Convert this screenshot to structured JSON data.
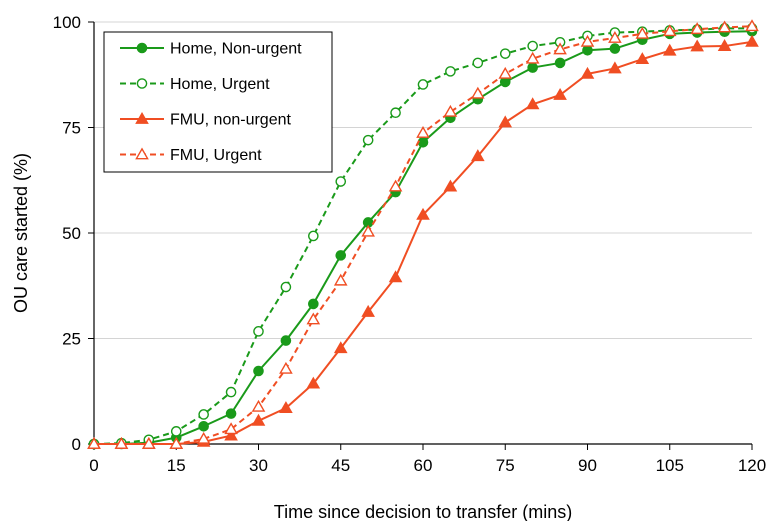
{
  "chart_data": {
    "type": "line",
    "title": "",
    "xlabel": "Time since decision to transfer (mins)",
    "ylabel": "OU care started (%)",
    "xlim": [
      0,
      120
    ],
    "ylim": [
      0,
      100
    ],
    "x_ticks": [
      0,
      15,
      30,
      45,
      60,
      75,
      90,
      105,
      120
    ],
    "y_ticks": [
      0,
      25,
      50,
      75,
      100
    ],
    "x_tick_labels": [
      "0",
      "15",
      "30",
      "45",
      "60",
      "75",
      "90",
      "105",
      "120"
    ],
    "y_tick_labels": [
      "0",
      "25",
      "50",
      "75",
      "100"
    ],
    "grid": "horizontal",
    "legend_position": "top-left",
    "x": [
      0,
      5,
      10,
      15,
      20,
      25,
      30,
      35,
      40,
      45,
      50,
      55,
      60,
      65,
      70,
      75,
      80,
      85,
      90,
      95,
      100,
      105,
      110,
      115,
      120
    ],
    "series": [
      {
        "name": "Home, Non-urgent",
        "color": "#1a9a1a",
        "line": "solid",
        "marker": "filled-circle",
        "values": [
          0,
          0,
          0.3,
          1.5,
          4.2,
          7.2,
          17.3,
          24.5,
          33.2,
          44.7,
          52.5,
          59.7,
          71.5,
          77.3,
          81.7,
          85.8,
          89.2,
          90.3,
          93.3,
          93.7,
          95.8,
          97.2,
          97.5,
          97.7,
          97.8
        ]
      },
      {
        "name": "Home, Urgent",
        "color": "#1a9a1a",
        "line": "dashed",
        "marker": "open-circle",
        "values": [
          0,
          0.2,
          1.0,
          3.0,
          7.0,
          12.3,
          26.7,
          37.2,
          49.3,
          62.2,
          72.0,
          78.5,
          85.2,
          88.3,
          90.3,
          92.5,
          94.3,
          95.2,
          96.7,
          97.5,
          97.7,
          98.0,
          98.2,
          98.5,
          98.5
        ]
      },
      {
        "name": "FMU, non-urgent",
        "color": "#f04e23",
        "line": "solid",
        "marker": "filled-triangle",
        "values": [
          0,
          0,
          0,
          0,
          0.5,
          2.0,
          5.5,
          8.5,
          14.3,
          22.7,
          31.3,
          39.5,
          54.3,
          61.0,
          68.2,
          76.2,
          80.5,
          82.7,
          87.7,
          89.0,
          91.2,
          93.2,
          94.2,
          94.3,
          95.3
        ]
      },
      {
        "name": "FMU, Urgent",
        "color": "#f04e23",
        "line": "dashed",
        "marker": "open-triangle",
        "values": [
          0,
          0,
          0,
          0,
          1.2,
          3.5,
          8.8,
          17.8,
          29.5,
          38.7,
          50.3,
          61.0,
          73.7,
          78.7,
          83.0,
          87.7,
          91.3,
          93.5,
          95.3,
          96.2,
          97.2,
          97.8,
          98.3,
          98.7,
          99.0
        ]
      }
    ]
  }
}
